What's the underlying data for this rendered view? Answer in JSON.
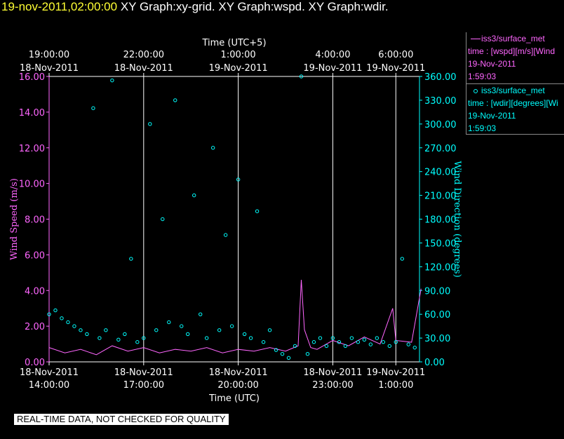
{
  "header": {
    "timestamp": "19-nov-2011,02:00:00",
    "graphs": "XY Graph:xy-grid.  XY Graph:wspd.  XY Graph:wdir."
  },
  "legend": {
    "wspd": {
      "name": "iss3/surface_met",
      "line1": "time : [wspd][m/s][Wind",
      "date": "19-Nov-2011",
      "time": "1:59:03"
    },
    "wdir": {
      "name": "iss3/surface_met",
      "line1": "time : [wdir][degrees][Wi",
      "date": "19-Nov-2011",
      "time": "1:59:03"
    }
  },
  "disclaimer": "REAL-TIME DATA, NOT CHECKED FOR QUALITY",
  "colors": {
    "wspd": "#ff66ff",
    "wdir": "#00ffff",
    "axis": "#ffffff",
    "grid": "#ffffff",
    "title": "#ffff33"
  },
  "chart_data": {
    "type": "line",
    "x_range_hours": [
      14.0,
      25.75
    ],
    "xlabel": "Time (UTC)",
    "x2label": "Time (UTC+5)",
    "bottom_ticks": [
      {
        "hour": 14,
        "date": "18-Nov-2011",
        "time": "14:00:00"
      },
      {
        "hour": 17,
        "date": "18-Nov-2011",
        "time": "17:00:00"
      },
      {
        "hour": 20,
        "date": "18-Nov-2011",
        "time": "20:00:00"
      },
      {
        "hour": 23,
        "date": "18-Nov-2011",
        "time": "23:00:00"
      },
      {
        "hour": 25,
        "date": "19-Nov-2011",
        "time": "1:00:00"
      }
    ],
    "top_ticks": [
      {
        "hour": 14,
        "time": "19:00:00",
        "date": "18-Nov-2011"
      },
      {
        "hour": 17,
        "time": "22:00:00",
        "date": "18-Nov-2011"
      },
      {
        "hour": 20,
        "time": "1:00:00",
        "date": "19-Nov-2011"
      },
      {
        "hour": 23,
        "time": "4:00:00",
        "date": "19-Nov-2011"
      },
      {
        "hour": 25,
        "time": "6:00:00",
        "date": "19-Nov-2011"
      }
    ],
    "grid_hours": [
      17,
      20,
      23,
      25
    ],
    "left_axis": {
      "label": "Wind Speed (m/s)",
      "range": [
        0,
        16
      ],
      "ticks": [
        "0.00",
        "2.00",
        "4.00",
        "6.00",
        "8.00",
        "10.00",
        "12.00",
        "14.00",
        "16.00"
      ]
    },
    "right_axis": {
      "label": "Wind Direction (degrees)",
      "range": [
        0,
        360
      ],
      "ticks": [
        "0.00",
        "30.00",
        "60.00",
        "90.00",
        "120.00",
        "150.00",
        "180.00",
        "210.00",
        "240.00",
        "270.00",
        "300.00",
        "330.00",
        "360.00"
      ]
    },
    "series": [
      {
        "name": "iss3/surface_met",
        "type": "line",
        "axis": "left",
        "x_hours": [
          14.0,
          14.5,
          15.0,
          15.5,
          16.0,
          16.5,
          17.0,
          17.5,
          18.0,
          18.5,
          19.0,
          19.5,
          20.0,
          20.5,
          21.0,
          21.5,
          21.9,
          22.0,
          22.1,
          22.3,
          22.5,
          23.0,
          23.5,
          24.0,
          24.5,
          24.9,
          25.0,
          25.5,
          25.8
        ],
        "values": [
          0.8,
          0.5,
          0.7,
          0.4,
          0.9,
          0.6,
          0.8,
          0.5,
          0.7,
          0.6,
          0.8,
          0.5,
          0.7,
          0.6,
          0.8,
          0.6,
          0.9,
          4.6,
          1.8,
          0.8,
          0.7,
          1.2,
          0.9,
          1.4,
          1.0,
          3.0,
          1.2,
          1.1,
          4.1
        ]
      },
      {
        "name": "iss3/surface_met",
        "type": "scatter",
        "axis": "right",
        "x_hours": [
          14.0,
          14.2,
          14.4,
          14.6,
          14.8,
          15.0,
          15.2,
          15.4,
          15.6,
          15.8,
          16.0,
          16.2,
          16.4,
          16.6,
          16.8,
          17.0,
          17.2,
          17.4,
          17.6,
          17.8,
          18.0,
          18.2,
          18.4,
          18.6,
          18.8,
          19.0,
          19.2,
          19.4,
          19.6,
          19.8,
          20.0,
          20.2,
          20.4,
          20.6,
          20.8,
          21.0,
          21.2,
          21.4,
          21.6,
          21.8,
          22.0,
          22.2,
          22.4,
          22.6,
          22.8,
          23.0,
          23.2,
          23.4,
          23.6,
          23.8,
          24.0,
          24.2,
          24.4,
          24.6,
          24.8,
          25.0,
          25.2,
          25.4,
          25.6
        ],
        "values": [
          60,
          65,
          55,
          50,
          45,
          40,
          35,
          320,
          30,
          40,
          355,
          28,
          35,
          130,
          25,
          30,
          300,
          40,
          180,
          50,
          330,
          45,
          35,
          210,
          60,
          30,
          270,
          40,
          160,
          45,
          230,
          35,
          30,
          190,
          25,
          40,
          15,
          10,
          5,
          20,
          360,
          10,
          25,
          30,
          20,
          30,
          25,
          20,
          30,
          25,
          28,
          22,
          30,
          25,
          20,
          25,
          130,
          22,
          18
        ]
      }
    ]
  }
}
